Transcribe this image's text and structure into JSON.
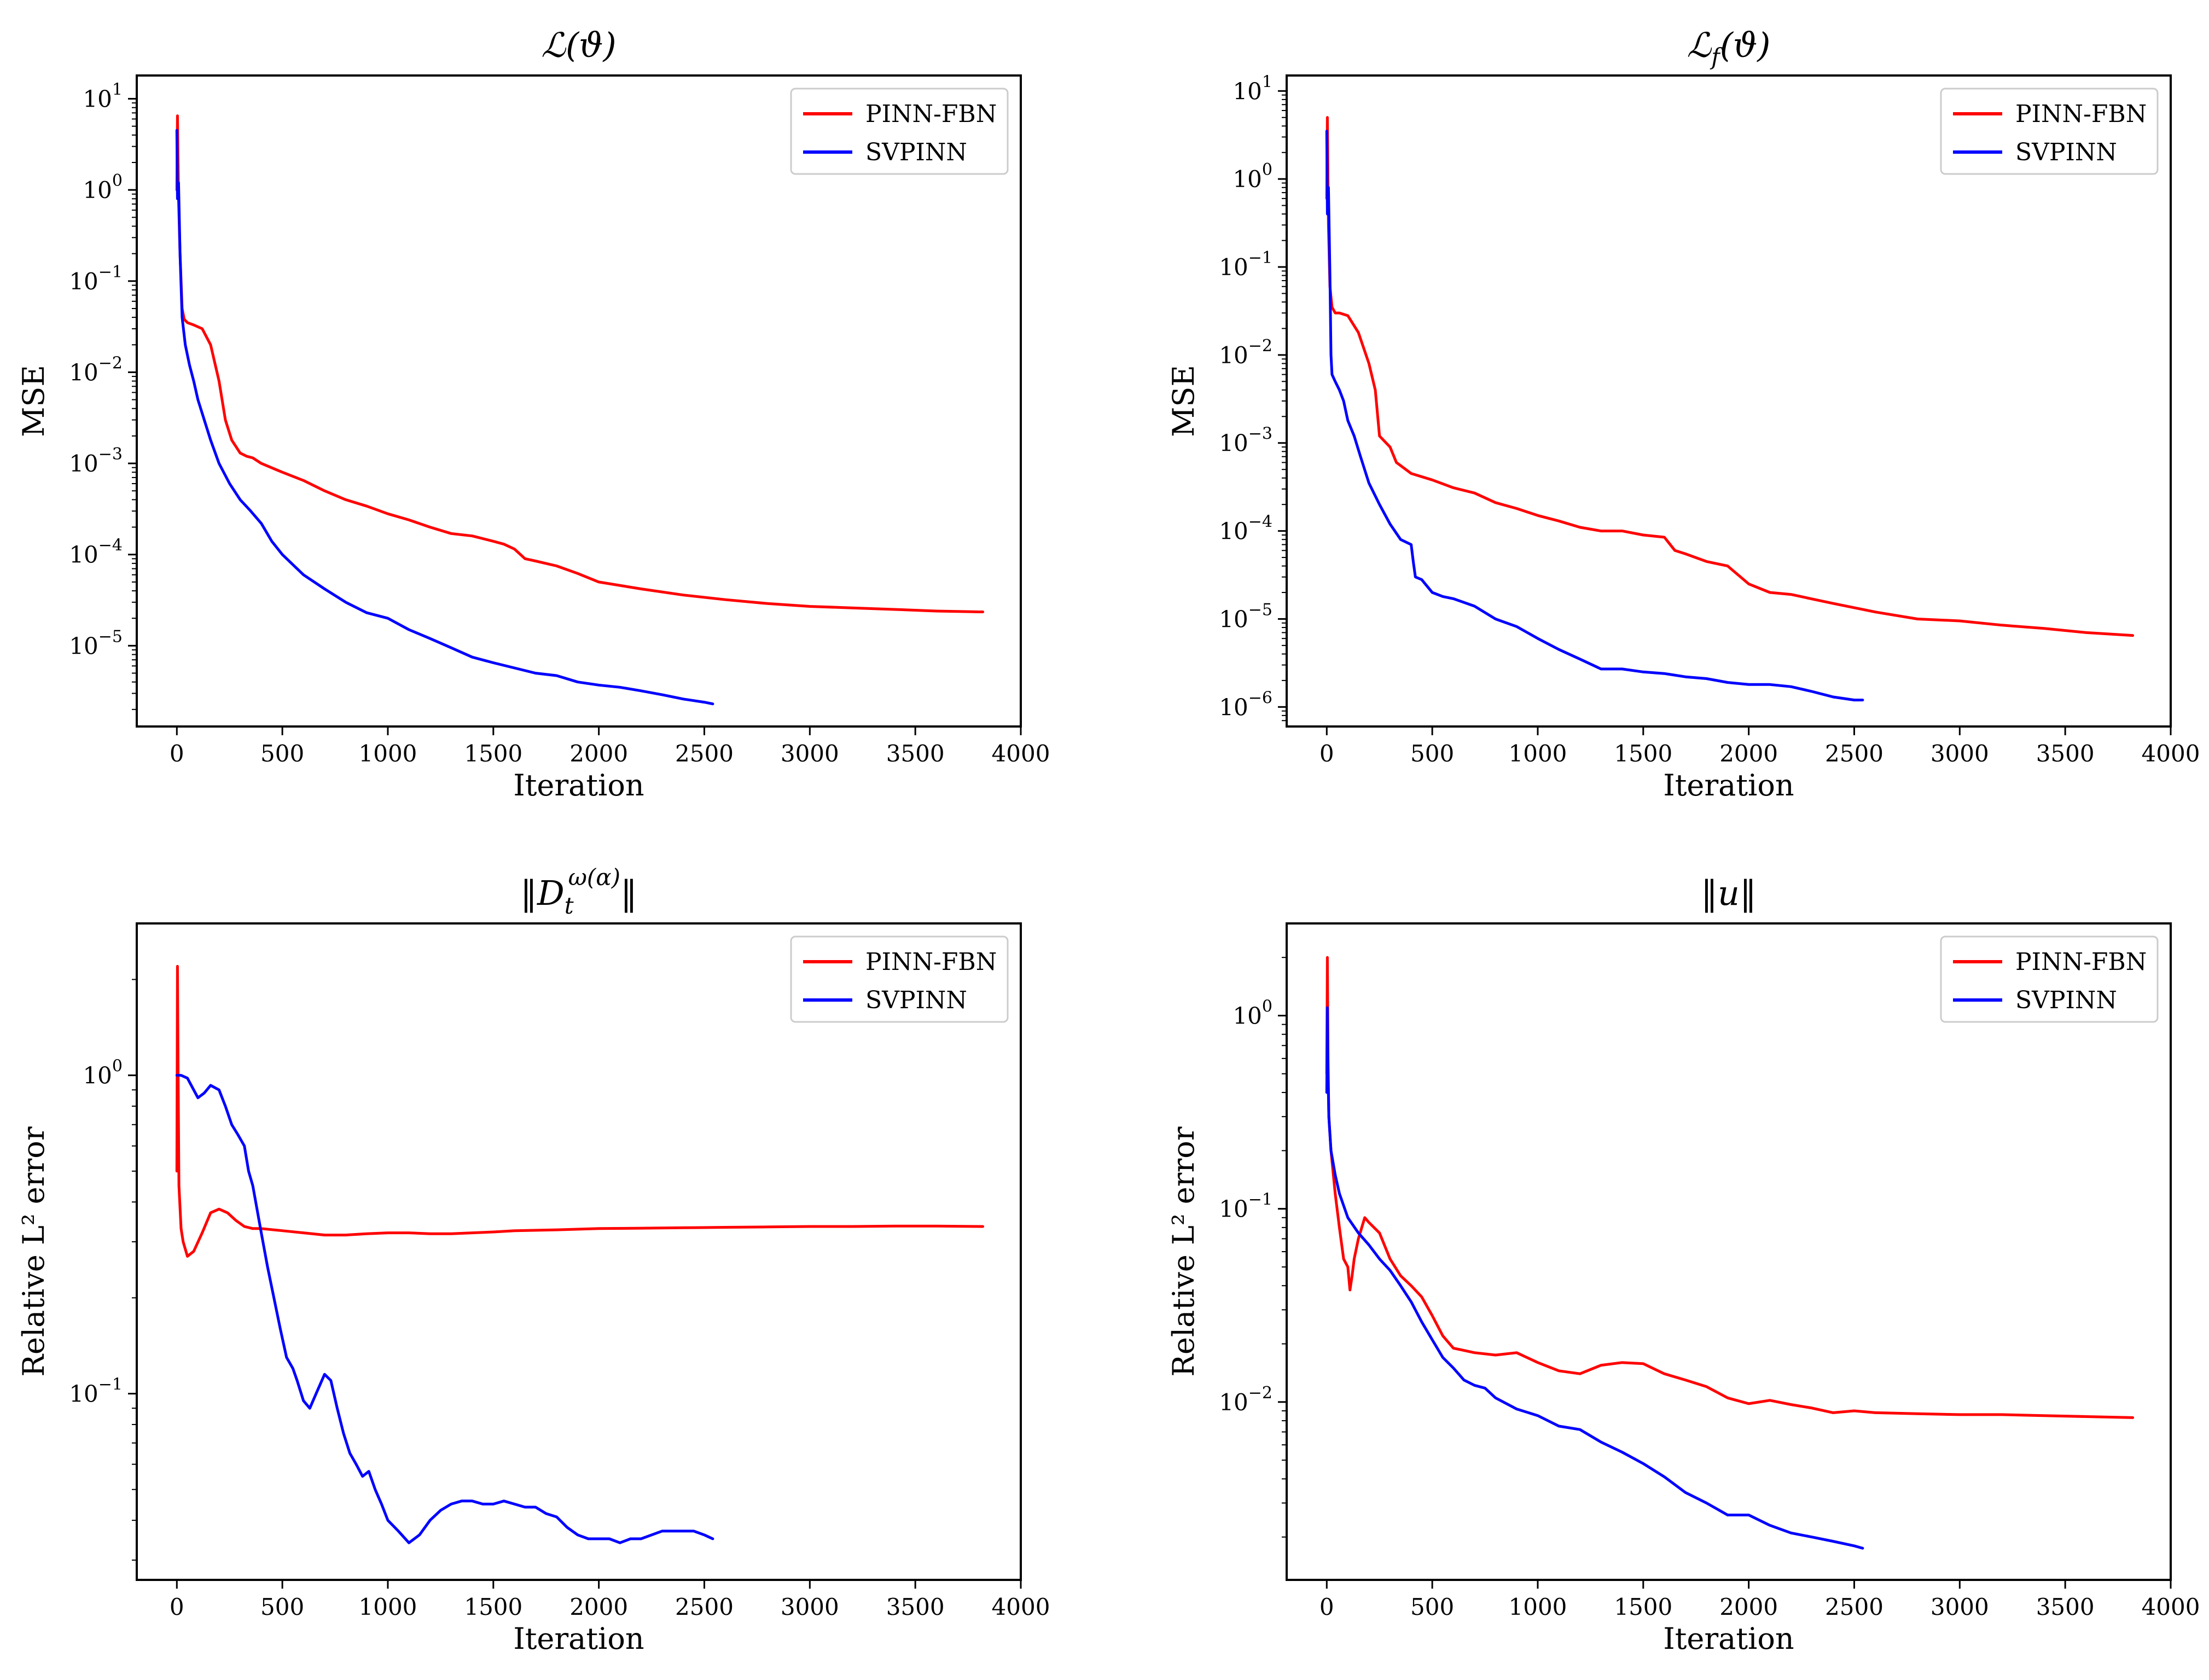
{
  "figure": {
    "panel_count": 4
  },
  "chart_data": [
    {
      "type": "line",
      "title": {
        "base": "ℒ(ϑ)",
        "sub": ""
      },
      "xlabel": "Iteration",
      "ylabel": "MSE",
      "yscale": "log",
      "xlim": [
        -190,
        4000
      ],
      "ylim": [
        1.3e-06,
        18
      ],
      "xticks": [
        0,
        500,
        1000,
        1500,
        2000,
        2500,
        3000,
        3500,
        4000
      ],
      "yticks": [
        {
          "value": 10,
          "exp": "1"
        },
        {
          "value": 1,
          "exp": "0"
        },
        {
          "value": 0.1,
          "exp": "−1"
        },
        {
          "value": 0.01,
          "exp": "−2"
        },
        {
          "value": 0.001,
          "exp": "−3"
        },
        {
          "value": 0.0001,
          "exp": "−4"
        },
        {
          "value": 1e-05,
          "exp": "−5"
        }
      ],
      "legend": {
        "location": "upper right"
      },
      "series": [
        {
          "name": "PINN-FBN",
          "color": "#ff0000",
          "x": [
            0,
            3,
            8,
            15,
            25,
            35,
            50,
            80,
            120,
            160,
            200,
            230,
            260,
            300,
            330,
            360,
            400,
            500,
            600,
            700,
            800,
            900,
            1000,
            1100,
            1200,
            1300,
            1400,
            1500,
            1550,
            1600,
            1650,
            1700,
            1800,
            1900,
            2000,
            2200,
            2400,
            2600,
            2800,
            3000,
            3200,
            3400,
            3600,
            3800,
            3820
          ],
          "y": [
            1.0,
            6.5,
            0.8,
            0.2,
            0.05,
            0.038,
            0.035,
            0.033,
            0.03,
            0.02,
            0.008,
            0.003,
            0.0018,
            0.0013,
            0.0012,
            0.00115,
            0.001,
            0.0008,
            0.00065,
            0.0005,
            0.0004,
            0.00034,
            0.00028,
            0.00024,
            0.0002,
            0.00017,
            0.00016,
            0.00014,
            0.00013,
            0.000115,
            9e-05,
            8.5e-05,
            7.5e-05,
            6.2e-05,
            5e-05,
            4.2e-05,
            3.6e-05,
            3.2e-05,
            2.9e-05,
            2.7e-05,
            2.6e-05,
            2.5e-05,
            2.4e-05,
            2.35e-05,
            2.35e-05
          ]
        },
        {
          "name": "SVPINN",
          "color": "#0000ff",
          "x": [
            0,
            3,
            8,
            15,
            25,
            40,
            60,
            80,
            100,
            130,
            160,
            200,
            250,
            300,
            350,
            400,
            450,
            500,
            600,
            700,
            800,
            900,
            1000,
            1100,
            1200,
            1300,
            1400,
            1500,
            1600,
            1700,
            1800,
            1900,
            2000,
            2100,
            2200,
            2300,
            2400,
            2500,
            2540
          ],
          "y": [
            4.5,
            0.8,
            1.2,
            0.2,
            0.04,
            0.02,
            0.012,
            0.008,
            0.005,
            0.003,
            0.0018,
            0.001,
            0.0006,
            0.0004,
            0.0003,
            0.00022,
            0.00014,
            0.0001,
            6e-05,
            4.2e-05,
            3e-05,
            2.3e-05,
            2e-05,
            1.5e-05,
            1.2e-05,
            9.5e-06,
            7.5e-06,
            6.5e-06,
            5.7e-06,
            5e-06,
            4.7e-06,
            4e-06,
            3.7e-06,
            3.5e-06,
            3.2e-06,
            2.9e-06,
            2.6e-06,
            2.4e-06,
            2.3e-06
          ]
        }
      ]
    },
    {
      "type": "line",
      "title": {
        "base": "ℒ(ϑ)",
        "sub": "f"
      },
      "xlabel": "Iteration",
      "ylabel": "MSE",
      "yscale": "log",
      "xlim": [
        -190,
        4000
      ],
      "ylim": [
        6e-07,
        15
      ],
      "xticks": [
        0,
        500,
        1000,
        1500,
        2000,
        2500,
        3000,
        3500,
        4000
      ],
      "yticks": [
        {
          "value": 10,
          "exp": "1"
        },
        {
          "value": 1,
          "exp": "0"
        },
        {
          "value": 0.1,
          "exp": "−1"
        },
        {
          "value": 0.01,
          "exp": "−2"
        },
        {
          "value": 0.001,
          "exp": "−3"
        },
        {
          "value": 0.0001,
          "exp": "−4"
        },
        {
          "value": 1e-05,
          "exp": "−5"
        },
        {
          "value": 1e-06,
          "exp": "−6"
        }
      ],
      "legend": {
        "location": "upper right"
      },
      "series": [
        {
          "name": "PINN-FBN",
          "color": "#ff0000",
          "x": [
            0,
            3,
            8,
            15,
            25,
            40,
            60,
            100,
            150,
            200,
            230,
            250,
            300,
            330,
            400,
            500,
            600,
            700,
            800,
            900,
            1000,
            1100,
            1200,
            1300,
            1400,
            1500,
            1600,
            1650,
            1700,
            1800,
            1900,
            2000,
            2100,
            2200,
            2400,
            2600,
            2800,
            3000,
            3200,
            3400,
            3600,
            3820
          ],
          "y": [
            0.6,
            5.0,
            0.3,
            0.06,
            0.035,
            0.03,
            0.03,
            0.028,
            0.018,
            0.008,
            0.004,
            0.0012,
            0.0009,
            0.0006,
            0.00045,
            0.00038,
            0.00031,
            0.00027,
            0.00021,
            0.00018,
            0.00015,
            0.00013,
            0.00011,
            0.0001,
            0.0001,
            9e-05,
            8.5e-05,
            6e-05,
            5.5e-05,
            4.5e-05,
            4e-05,
            2.5e-05,
            2e-05,
            1.9e-05,
            1.5e-05,
            1.2e-05,
            1e-05,
            9.5e-06,
            8.5e-06,
            7.8e-06,
            7e-06,
            6.5e-06
          ]
        },
        {
          "name": "SVPINN",
          "color": "#0000ff",
          "x": [
            0,
            3,
            8,
            15,
            20,
            25,
            40,
            60,
            80,
            100,
            130,
            160,
            200,
            250,
            300,
            350,
            400,
            410,
            420,
            450,
            500,
            550,
            600,
            700,
            800,
            900,
            1000,
            1100,
            1200,
            1300,
            1400,
            1500,
            1600,
            1700,
            1800,
            1900,
            2000,
            2100,
            2200,
            2300,
            2400,
            2500,
            2540
          ],
          "y": [
            3.5,
            0.4,
            0.8,
            0.08,
            0.01,
            0.006,
            0.005,
            0.004,
            0.003,
            0.0018,
            0.0012,
            0.0007,
            0.00035,
            0.0002,
            0.00012,
            8e-05,
            7e-05,
            4.5e-05,
            3e-05,
            2.8e-05,
            2e-05,
            1.8e-05,
            1.7e-05,
            1.4e-05,
            1e-05,
            8.2e-06,
            6e-06,
            4.5e-06,
            3.5e-06,
            2.7e-06,
            2.7e-06,
            2.5e-06,
            2.4e-06,
            2.2e-06,
            2.1e-06,
            1.9e-06,
            1.8e-06,
            1.8e-06,
            1.7e-06,
            1.5e-06,
            1.3e-06,
            1.2e-06,
            1.2e-06
          ]
        }
      ]
    },
    {
      "type": "line",
      "title": {
        "base": "‖D_t^ω(α)‖",
        "sub": ""
      },
      "xlabel": "Iteration",
      "ylabel": "Relative L² error",
      "yscale": "log",
      "xlim": [
        -190,
        4000
      ],
      "ylim": [
        0.026,
        3.0
      ],
      "xticks": [
        0,
        500,
        1000,
        1500,
        2000,
        2500,
        3000,
        3500,
        4000
      ],
      "yticks": [
        {
          "value": 1,
          "exp": "0"
        },
        {
          "value": 0.1,
          "exp": "−1"
        }
      ],
      "legend": {
        "location": "upper right"
      },
      "series": [
        {
          "name": "PINN-FBN",
          "color": "#ff0000",
          "x": [
            0,
            3,
            6,
            10,
            20,
            30,
            50,
            80,
            120,
            160,
            200,
            240,
            280,
            320,
            360,
            400,
            500,
            600,
            700,
            800,
            900,
            1000,
            1100,
            1200,
            1300,
            1400,
            1500,
            1600,
            1800,
            2000,
            2200,
            2400,
            2600,
            2800,
            3000,
            3200,
            3400,
            3600,
            3820
          ],
          "y": [
            0.5,
            2.2,
            1.0,
            0.45,
            0.33,
            0.3,
            0.27,
            0.28,
            0.32,
            0.37,
            0.38,
            0.37,
            0.35,
            0.335,
            0.33,
            0.33,
            0.325,
            0.32,
            0.315,
            0.315,
            0.318,
            0.32,
            0.32,
            0.318,
            0.318,
            0.32,
            0.322,
            0.325,
            0.327,
            0.33,
            0.331,
            0.332,
            0.333,
            0.334,
            0.335,
            0.335,
            0.336,
            0.336,
            0.335
          ]
        },
        {
          "name": "SVPINN",
          "color": "#0000ff",
          "x": [
            0,
            20,
            50,
            80,
            100,
            130,
            160,
            200,
            230,
            260,
            290,
            320,
            340,
            360,
            380,
            400,
            430,
            460,
            490,
            520,
            550,
            570,
            600,
            630,
            660,
            700,
            730,
            760,
            790,
            820,
            850,
            880,
            910,
            940,
            970,
            1000,
            1050,
            1100,
            1150,
            1200,
            1250,
            1300,
            1350,
            1400,
            1450,
            1500,
            1550,
            1600,
            1650,
            1700,
            1750,
            1800,
            1850,
            1900,
            1950,
            2000,
            2050,
            2100,
            2150,
            2200,
            2250,
            2300,
            2350,
            2400,
            2450,
            2500,
            2540
          ],
          "y": [
            1.0,
            1.0,
            0.98,
            0.9,
            0.85,
            0.88,
            0.93,
            0.9,
            0.8,
            0.7,
            0.65,
            0.6,
            0.5,
            0.45,
            0.38,
            0.32,
            0.25,
            0.2,
            0.16,
            0.13,
            0.12,
            0.11,
            0.095,
            0.09,
            0.1,
            0.115,
            0.11,
            0.09,
            0.075,
            0.065,
            0.06,
            0.055,
            0.057,
            0.05,
            0.045,
            0.04,
            0.037,
            0.034,
            0.036,
            0.04,
            0.043,
            0.045,
            0.046,
            0.046,
            0.045,
            0.045,
            0.046,
            0.045,
            0.044,
            0.044,
            0.042,
            0.041,
            0.038,
            0.036,
            0.035,
            0.035,
            0.035,
            0.034,
            0.035,
            0.035,
            0.036,
            0.037,
            0.037,
            0.037,
            0.037,
            0.036,
            0.035
          ]
        }
      ]
    },
    {
      "type": "line",
      "title": {
        "base": "‖u‖",
        "sub": ""
      },
      "xlabel": "Iteration",
      "ylabel": "Relative L² error",
      "yscale": "log",
      "xlim": [
        -190,
        4000
      ],
      "ylim": [
        0.0012,
        3.0
      ],
      "xticks": [
        0,
        500,
        1000,
        1500,
        2000,
        2500,
        3000,
        3500,
        4000
      ],
      "yticks": [
        {
          "value": 1,
          "exp": "0"
        },
        {
          "value": 0.1,
          "exp": "−1"
        },
        {
          "value": 0.01,
          "exp": "−2"
        }
      ],
      "legend": {
        "location": "upper right"
      },
      "series": [
        {
          "name": "PINN-FBN",
          "color": "#ff0000",
          "x": [
            0,
            3,
            6,
            10,
            20,
            40,
            60,
            80,
            100,
            110,
            120,
            130,
            150,
            180,
            200,
            250,
            300,
            350,
            400,
            450,
            500,
            550,
            600,
            700,
            800,
            900,
            1000,
            1100,
            1200,
            1300,
            1400,
            1500,
            1600,
            1700,
            1800,
            1900,
            2000,
            2100,
            2200,
            2300,
            2400,
            2500,
            2600,
            2800,
            3000,
            3200,
            3400,
            3600,
            3820
          ],
          "y": [
            0.5,
            2.0,
            0.6,
            0.3,
            0.2,
            0.12,
            0.08,
            0.055,
            0.05,
            0.038,
            0.045,
            0.055,
            0.07,
            0.09,
            0.085,
            0.075,
            0.055,
            0.045,
            0.04,
            0.035,
            0.028,
            0.022,
            0.019,
            0.018,
            0.0175,
            0.018,
            0.016,
            0.0145,
            0.014,
            0.0155,
            0.016,
            0.0158,
            0.014,
            0.013,
            0.012,
            0.0105,
            0.0098,
            0.0102,
            0.0097,
            0.0093,
            0.0088,
            0.009,
            0.0088,
            0.0087,
            0.0086,
            0.0086,
            0.0085,
            0.0084,
            0.0083
          ]
        },
        {
          "name": "SVPINN",
          "color": "#0000ff",
          "x": [
            0,
            3,
            6,
            10,
            20,
            40,
            60,
            100,
            150,
            200,
            250,
            300,
            350,
            400,
            450,
            500,
            550,
            600,
            650,
            700,
            750,
            800,
            900,
            1000,
            1100,
            1200,
            1300,
            1400,
            1500,
            1600,
            1700,
            1800,
            1900,
            2000,
            2100,
            2200,
            2300,
            2400,
            2500,
            2540
          ],
          "y": [
            0.4,
            1.1,
            0.5,
            0.3,
            0.2,
            0.15,
            0.12,
            0.09,
            0.075,
            0.065,
            0.055,
            0.048,
            0.04,
            0.033,
            0.026,
            0.021,
            0.017,
            0.015,
            0.013,
            0.0122,
            0.0118,
            0.0105,
            0.0092,
            0.0085,
            0.0075,
            0.0072,
            0.0062,
            0.0055,
            0.0048,
            0.0041,
            0.0034,
            0.003,
            0.0026,
            0.0026,
            0.0023,
            0.0021,
            0.002,
            0.0019,
            0.0018,
            0.00175
          ]
        }
      ]
    }
  ]
}
